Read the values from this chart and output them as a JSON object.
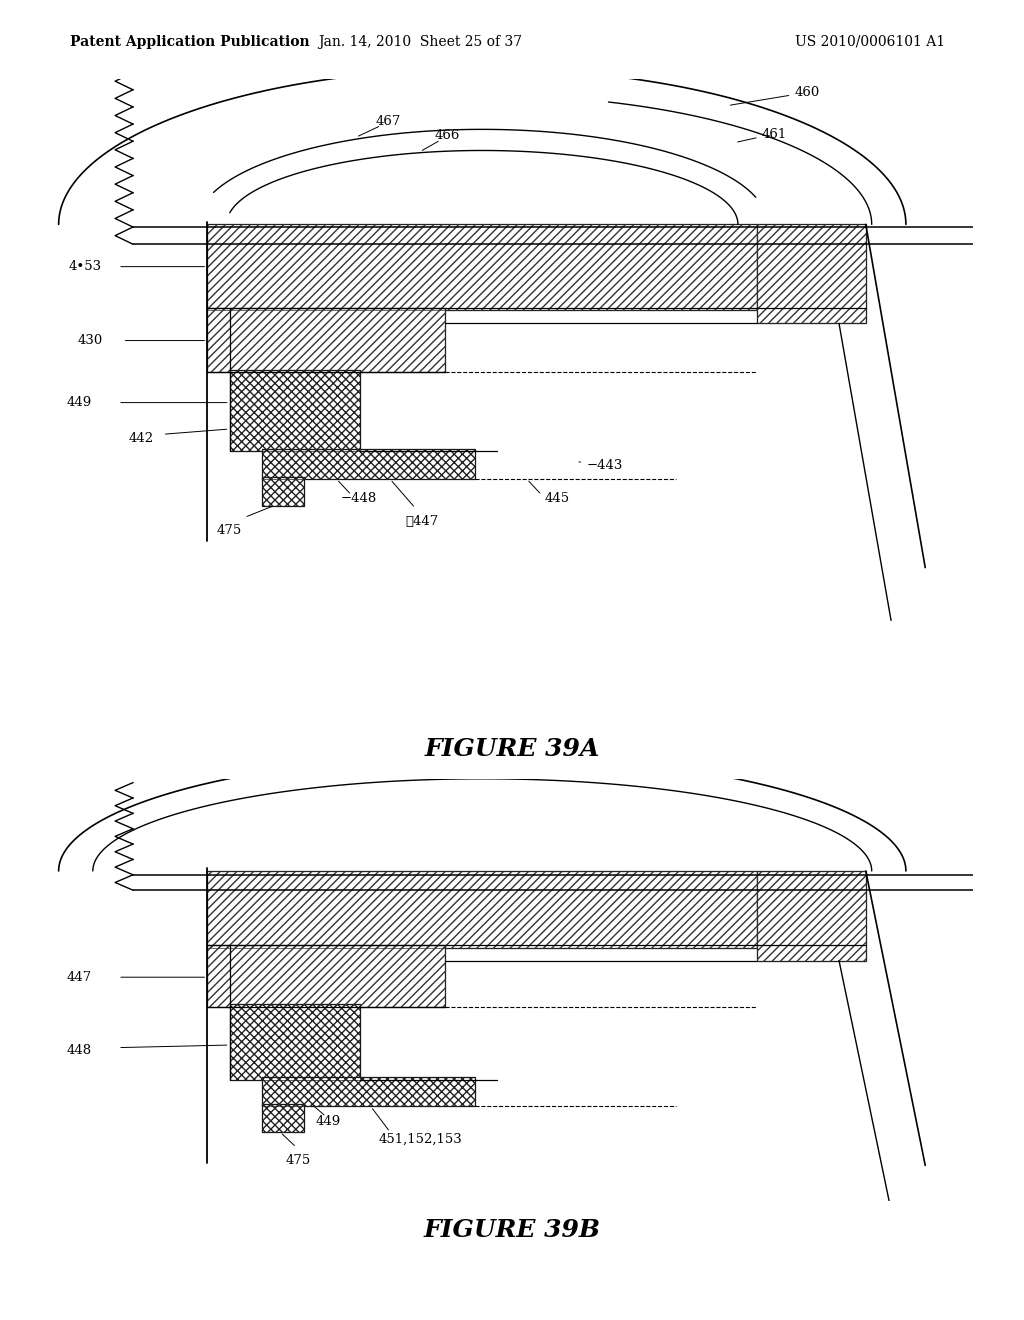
{
  "background_color": "#ffffff",
  "header_left": "Patent Application Publication",
  "header_center": "Jan. 14, 2010  Sheet 25 of 37",
  "header_right": "US 2010/0006101 A1",
  "figure_39a_title": "FIGURE 39A",
  "figure_39b_title": "FIGURE 39B",
  "header_fontsize": 10,
  "figure_title_fontsize": 18
}
